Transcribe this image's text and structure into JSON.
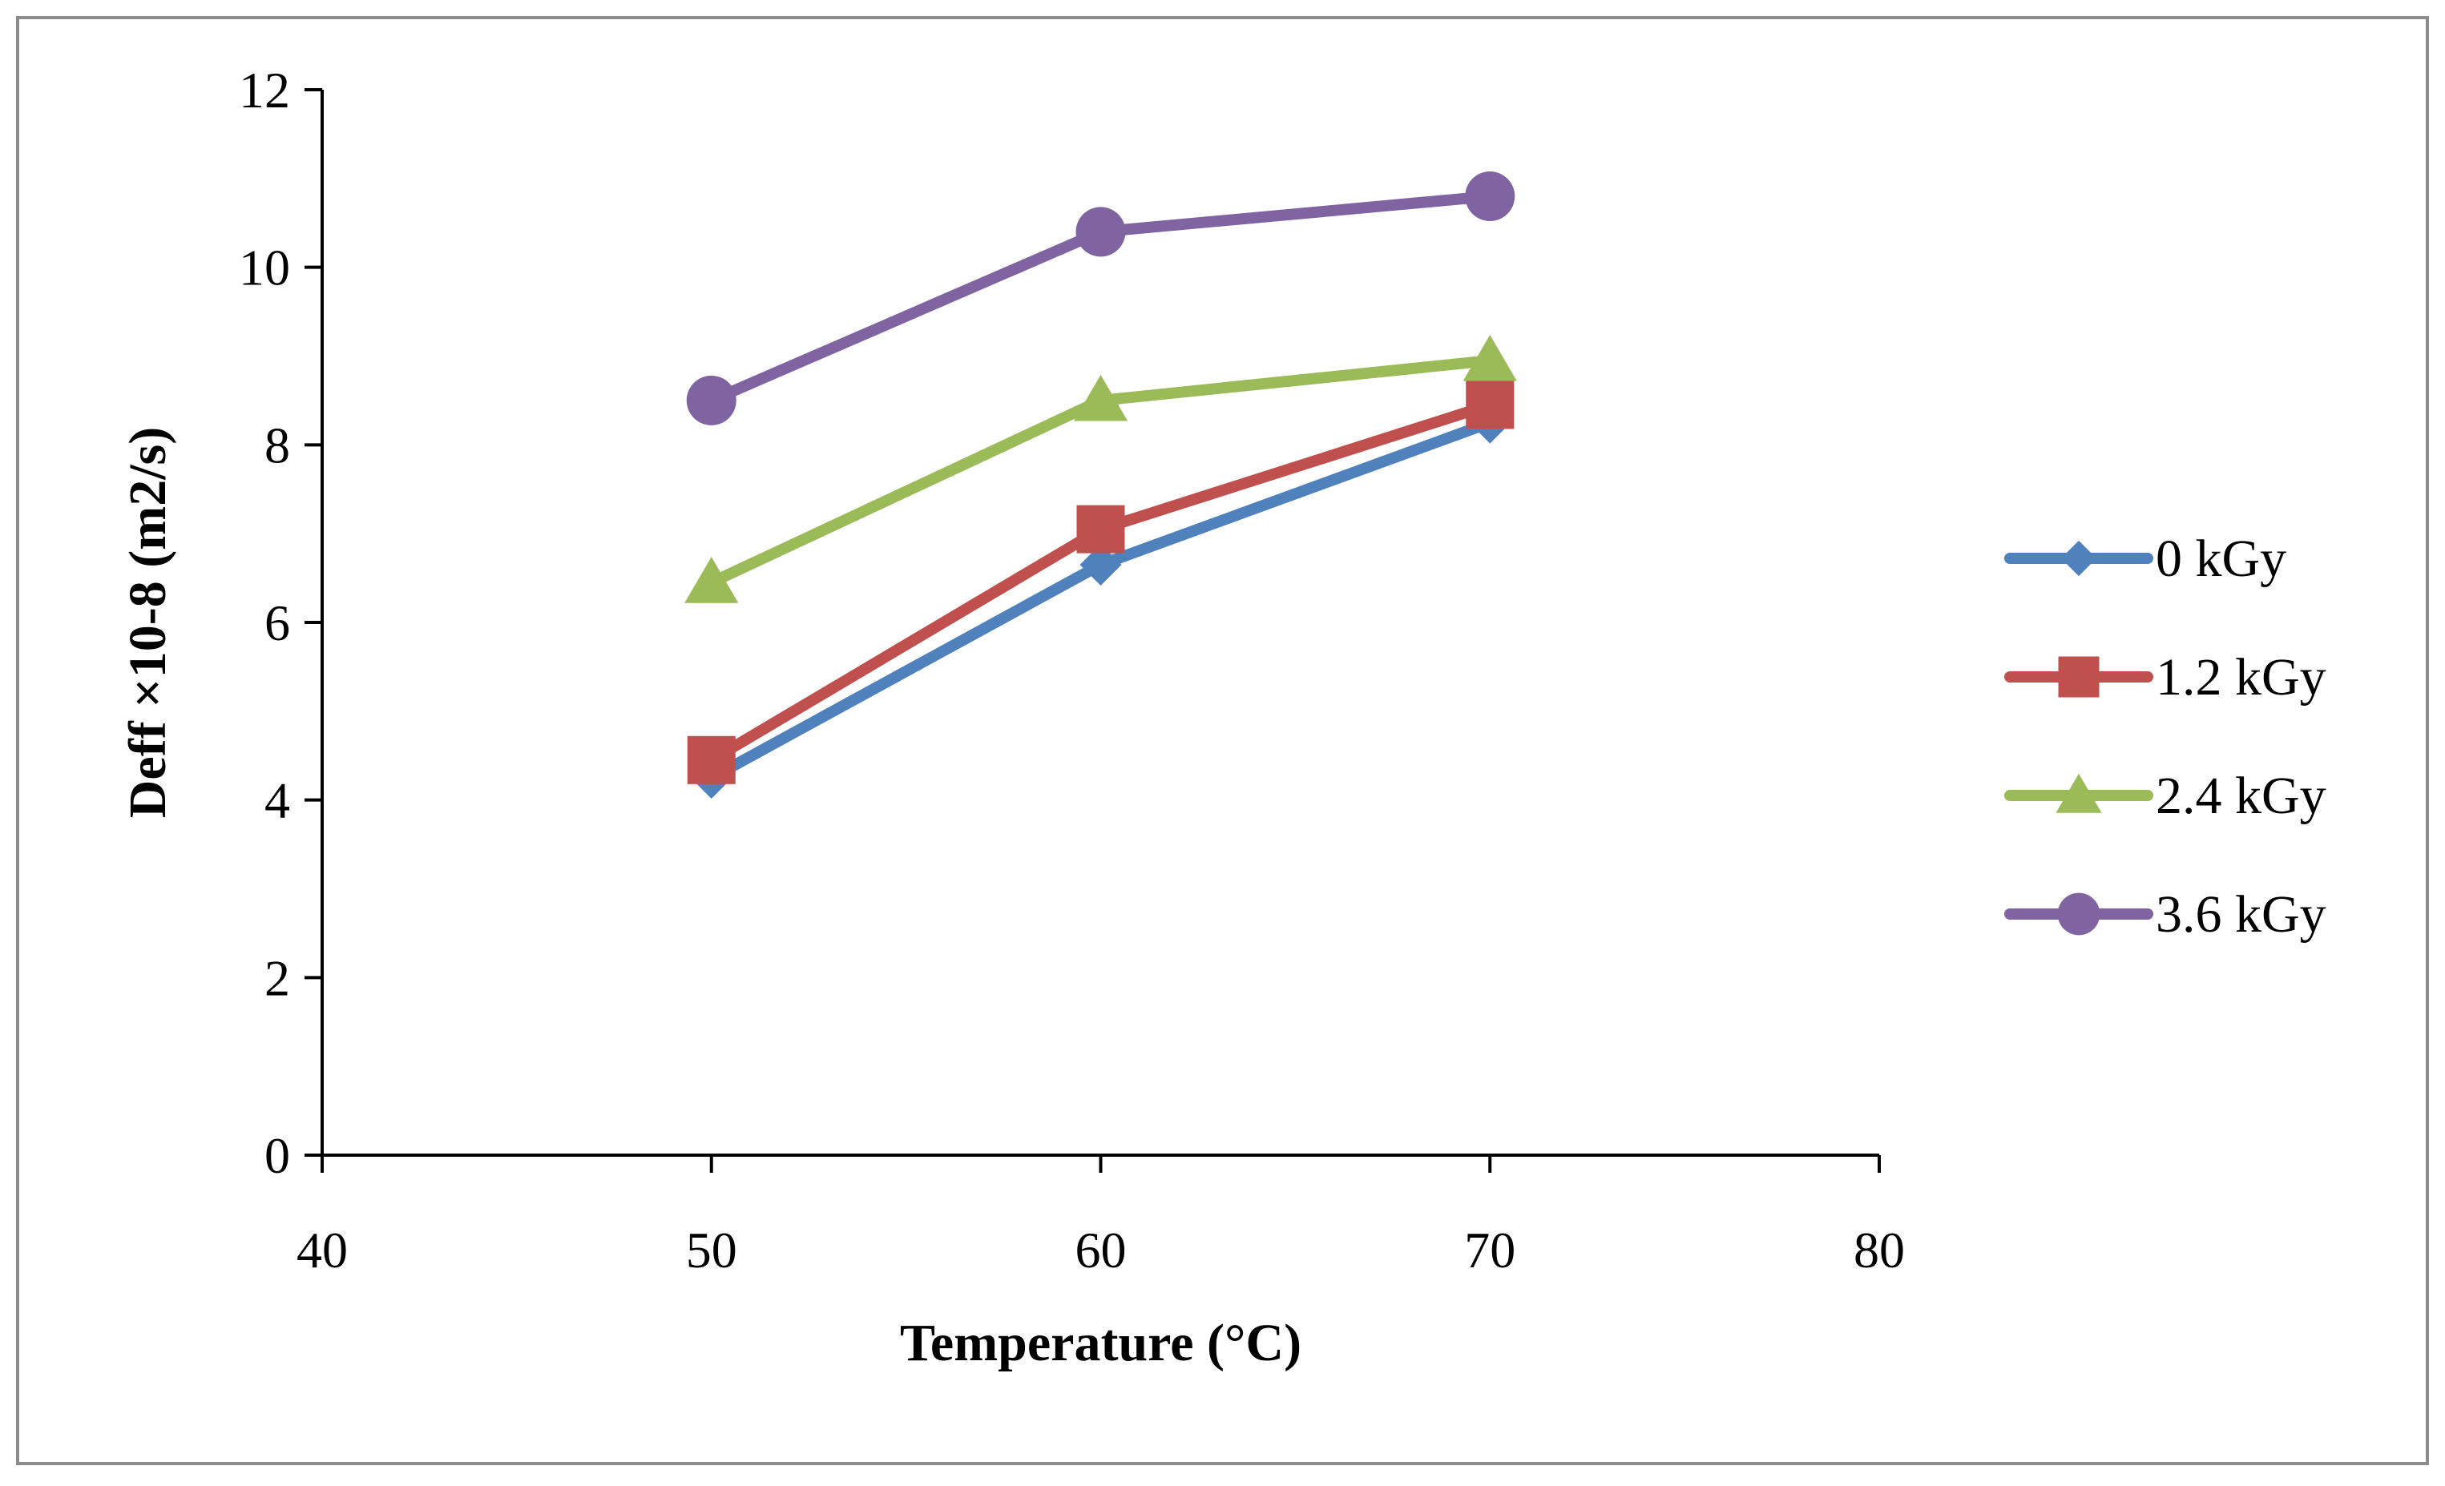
{
  "chart_data": {
    "type": "line",
    "title": "",
    "xlabel": "Temperature (°C)",
    "ylabel": "Deff ×10-8 (m2/s)",
    "xlim": [
      40,
      80
    ],
    "ylim": [
      0,
      12
    ],
    "xticks": [
      40,
      50,
      60,
      70,
      80
    ],
    "yticks": [
      0,
      2,
      4,
      6,
      8,
      10,
      12
    ],
    "grid": false,
    "legend_position": "right",
    "x": [
      50,
      60,
      70
    ],
    "series": [
      {
        "name": "0 kGy",
        "values": [
          4.25,
          6.65,
          8.25
        ],
        "color": "#4f81bd",
        "marker": "diamond"
      },
      {
        "name": "1.2 kGy",
        "values": [
          4.45,
          7.05,
          8.45
        ],
        "color": "#c0504d",
        "marker": "square"
      },
      {
        "name": "2.4 kGy",
        "values": [
          6.45,
          8.5,
          8.95
        ],
        "color": "#9bbb59",
        "marker": "triangle"
      },
      {
        "name": "3.6 kGy",
        "values": [
          8.5,
          10.4,
          10.8
        ],
        "color": "#8064a2",
        "marker": "circle"
      }
    ]
  }
}
